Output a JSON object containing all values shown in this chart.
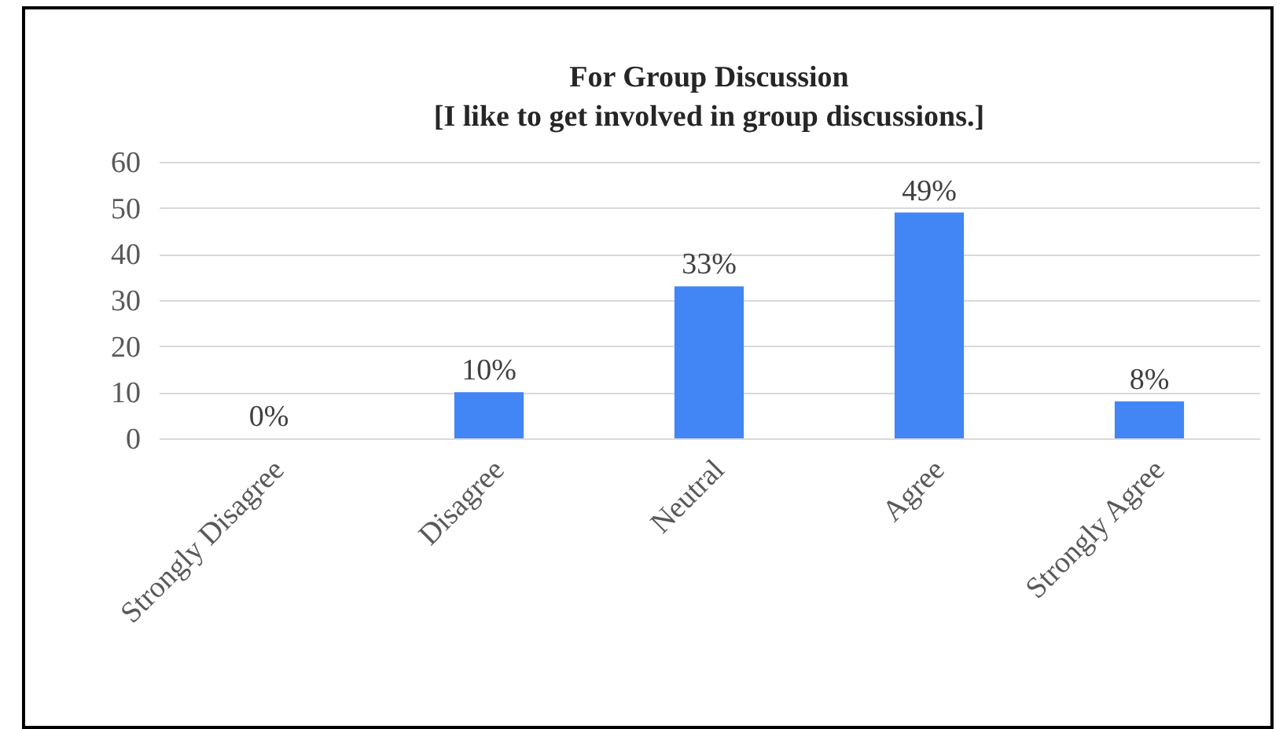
{
  "chart_data": {
    "type": "bar",
    "title": "For Group Discussion",
    "subtitle": "[I like to get involved in group discussions.]",
    "categories": [
      "Strongly Disagree",
      "Disagree",
      "Neutral",
      "Agree",
      "Strongly Agree"
    ],
    "values": [
      0,
      10,
      33,
      49,
      8
    ],
    "value_labels": [
      "0%",
      "10%",
      "33%",
      "49%",
      "8%"
    ],
    "color": "#4285f4",
    "ylim": [
      0,
      60
    ],
    "yticks": [
      0,
      10,
      20,
      30,
      40,
      50,
      60
    ],
    "grid": "y"
  }
}
